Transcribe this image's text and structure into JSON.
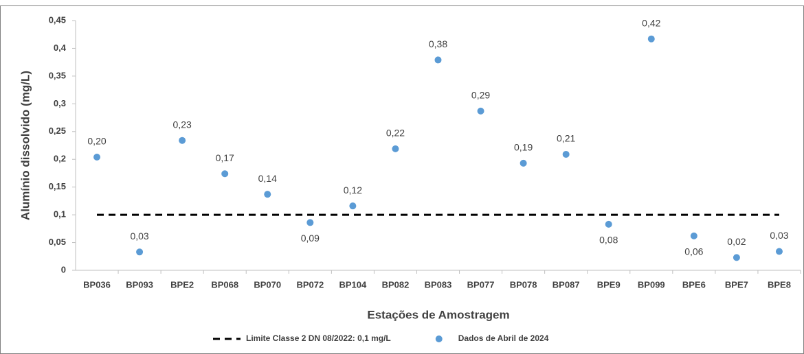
{
  "chart_data": {
    "type": "scatter",
    "x_label": "Estações de Amostragem",
    "y_label": "Alumínio dissolvido (mg/L)",
    "categories": [
      "BP036",
      "BP093",
      "BPE2",
      "BP068",
      "BP070",
      "BP072",
      "BP104",
      "BP082",
      "BP083",
      "BP077",
      "BP078",
      "BP087",
      "BPE9",
      "BP099",
      "BPE6",
      "BPE7",
      "BPE8"
    ],
    "series": [
      {
        "name": "Limite Classe 2 DN 08/2022: 0,1 mg/L",
        "type": "line",
        "color": "#000000",
        "values": [
          0.1,
          0.1,
          0.1,
          0.1,
          0.1,
          0.1,
          0.1,
          0.1,
          0.1,
          0.1,
          0.1,
          0.1,
          0.1,
          0.1,
          0.1,
          0.1,
          0.1
        ]
      },
      {
        "name": "Dados de Abril de 2024",
        "type": "scatter",
        "color": "#5b9bd5",
        "values": [
          0.204,
          0.033,
          0.234,
          0.174,
          0.137,
          0.086,
          0.116,
          0.219,
          0.379,
          0.287,
          0.193,
          0.209,
          0.083,
          0.417,
          0.062,
          0.023,
          0.034
        ],
        "value_labels": [
          "0,20",
          "0,03",
          "0,23",
          "0,17",
          "0,14",
          "0,09",
          "0,12",
          "0,22",
          "0,38",
          "0,29",
          "0,19",
          "0,21",
          "0,08",
          "0,42",
          "0,06",
          "0,02",
          "0,03"
        ]
      }
    ],
    "ylim": [
      0,
      0.45
    ],
    "yticks": [
      0,
      {
        "value": 0.05,
        "label": "0,05"
      },
      {
        "value": 0.1,
        "label": "0,1"
      },
      {
        "value": 0.15,
        "label": "0,15"
      },
      {
        "value": 0.2,
        "label": "0,2"
      },
      {
        "value": 0.25,
        "label": "0,25"
      },
      {
        "value": 0.3,
        "label": "0,3"
      },
      {
        "value": 0.35,
        "label": "0,35"
      },
      {
        "value": 0.4,
        "label": "0,4"
      },
      {
        "value": 0.45,
        "label": "0,45"
      }
    ],
    "grid": false,
    "legend": "bottom"
  }
}
